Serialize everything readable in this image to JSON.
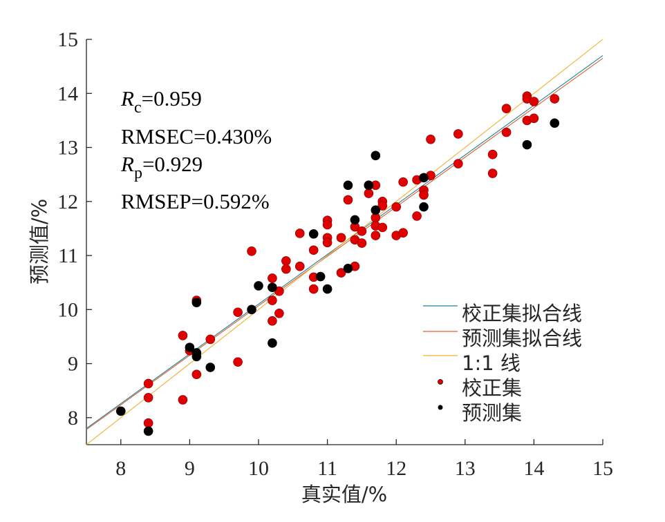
{
  "chart_data": {
    "type": "scatter",
    "xlabel": "真实值/%",
    "ylabel": "预测值/%",
    "xlim": [
      7.5,
      15
    ],
    "ylim": [
      7.5,
      15
    ],
    "x_ticks": [
      "8",
      "9",
      "10",
      "11",
      "12",
      "13",
      "14",
      "15"
    ],
    "y_ticks": [
      "8",
      "9",
      "10",
      "11",
      "12",
      "13",
      "14",
      "15"
    ],
    "annotations": {
      "rc_var": "R",
      "rc_sub": "c",
      "rc_value": "=0.959",
      "rmsec": "RMSEC=0.430%",
      "rp_var": "R",
      "rp_sub": "p",
      "rp_value": "=0.929",
      "rmsep": "RMSEP=0.592%"
    },
    "lines": [
      {
        "name": "校正集拟合线",
        "color": "#1f7f9e",
        "x": [
          7.5,
          15
        ],
        "y": [
          7.8,
          14.7
        ]
      },
      {
        "name": "预测集拟合线",
        "color": "#d9612b",
        "x": [
          7.5,
          15
        ],
        "y": [
          7.78,
          14.65
        ]
      },
      {
        "name": "1:1 线",
        "color": "#f0b030",
        "x": [
          7.5,
          15
        ],
        "y": [
          7.5,
          15
        ]
      }
    ],
    "series": [
      {
        "name": "校正集",
        "color": "#e00000",
        "points": [
          [
            8.4,
            8.63
          ],
          [
            8.4,
            8.37
          ],
          [
            8.4,
            7.9
          ],
          [
            8.9,
            9.52
          ],
          [
            8.9,
            8.33
          ],
          [
            9.0,
            9.24
          ],
          [
            9.1,
            10.17
          ],
          [
            9.1,
            8.8
          ],
          [
            9.3,
            9.45
          ],
          [
            9.7,
            9.95
          ],
          [
            9.7,
            9.03
          ],
          [
            9.9,
            11.08
          ],
          [
            10.2,
            10.58
          ],
          [
            10.2,
            10.17
          ],
          [
            10.2,
            9.79
          ],
          [
            10.3,
            10.34
          ],
          [
            10.3,
            9.93
          ],
          [
            10.4,
            10.9
          ],
          [
            10.4,
            10.75
          ],
          [
            10.6,
            11.41
          ],
          [
            10.6,
            10.8
          ],
          [
            10.8,
            11.1
          ],
          [
            10.8,
            10.6
          ],
          [
            10.8,
            10.38
          ],
          [
            11.0,
            11.65
          ],
          [
            11.0,
            11.57
          ],
          [
            11.0,
            11.33
          ],
          [
            11.0,
            11.24
          ],
          [
            11.2,
            11.33
          ],
          [
            11.2,
            10.68
          ],
          [
            11.3,
            12.03
          ],
          [
            11.4,
            11.53
          ],
          [
            11.4,
            11.29
          ],
          [
            11.4,
            10.8
          ],
          [
            11.5,
            11.45
          ],
          [
            11.5,
            11.23
          ],
          [
            11.6,
            12.3
          ],
          [
            11.6,
            12.15
          ],
          [
            11.7,
            12.3
          ],
          [
            11.7,
            11.7
          ],
          [
            11.7,
            11.55
          ],
          [
            11.7,
            11.37
          ],
          [
            11.8,
            12.0
          ],
          [
            11.8,
            11.92
          ],
          [
            11.8,
            11.52
          ],
          [
            12.0,
            11.9
          ],
          [
            12.0,
            11.37
          ],
          [
            12.1,
            12.36
          ],
          [
            12.1,
            11.42
          ],
          [
            12.3,
            12.4
          ],
          [
            12.3,
            11.73
          ],
          [
            12.4,
            12.21
          ],
          [
            12.4,
            12.12
          ],
          [
            12.5,
            13.15
          ],
          [
            12.5,
            12.48
          ],
          [
            12.9,
            13.25
          ],
          [
            12.9,
            12.7
          ],
          [
            13.4,
            12.87
          ],
          [
            13.4,
            12.52
          ],
          [
            13.6,
            13.72
          ],
          [
            13.6,
            13.28
          ],
          [
            13.9,
            13.95
          ],
          [
            13.9,
            13.9
          ],
          [
            13.9,
            13.5
          ],
          [
            14.0,
            13.85
          ],
          [
            14.0,
            13.54
          ],
          [
            14.3,
            13.9
          ]
        ]
      },
      {
        "name": "预测集",
        "color": "#000000",
        "points": [
          [
            8.0,
            8.12
          ],
          [
            8.4,
            7.75
          ],
          [
            9.0,
            9.3
          ],
          [
            9.1,
            10.13
          ],
          [
            9.1,
            9.2
          ],
          [
            9.1,
            9.13
          ],
          [
            9.3,
            8.93
          ],
          [
            9.9,
            10.0
          ],
          [
            10.0,
            10.44
          ],
          [
            10.2,
            10.41
          ],
          [
            10.2,
            9.38
          ],
          [
            10.8,
            11.4
          ],
          [
            10.9,
            10.61
          ],
          [
            11.0,
            10.38
          ],
          [
            11.3,
            12.3
          ],
          [
            11.3,
            10.76
          ],
          [
            11.4,
            11.66
          ],
          [
            11.6,
            12.3
          ],
          [
            11.7,
            12.85
          ],
          [
            11.7,
            11.84
          ],
          [
            12.4,
            12.44
          ],
          [
            12.4,
            11.9
          ],
          [
            13.9,
            13.05
          ],
          [
            14.3,
            13.45
          ]
        ]
      }
    ],
    "legend": {
      "position": "bottom-right",
      "entries": [
        {
          "label": "校正集拟合线",
          "kind": "line",
          "color": "#1f7f9e"
        },
        {
          "label": "预测集拟合线",
          "kind": "line",
          "color": "#d9612b"
        },
        {
          "label": "1:1 线",
          "kind": "line",
          "color": "#f0b030"
        },
        {
          "label": "校正集",
          "kind": "marker",
          "color": "#e00000"
        },
        {
          "label": "预测集",
          "kind": "marker",
          "color": "#000000"
        }
      ]
    }
  }
}
